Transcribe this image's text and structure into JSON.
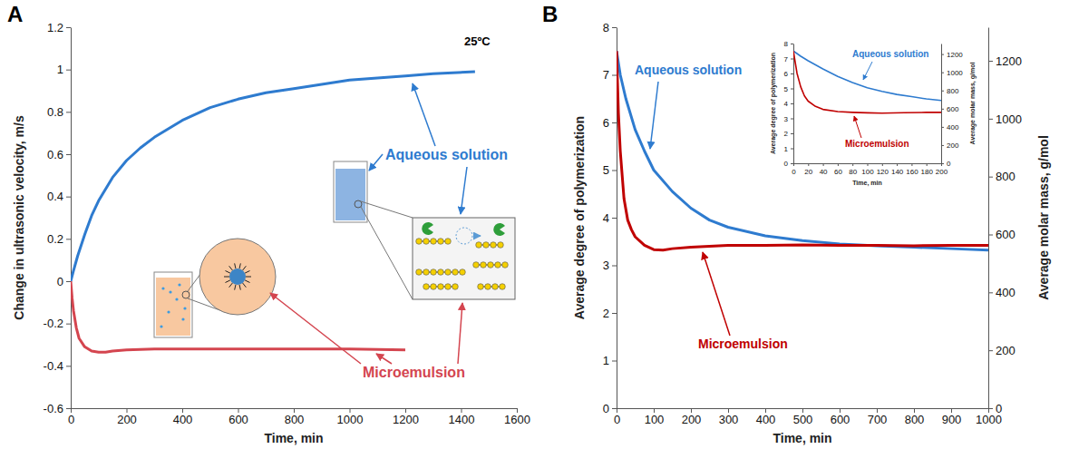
{
  "chart_data": [
    {
      "type": "line",
      "title": "A",
      "annotations": [
        "25ºC"
      ],
      "xlabel": "Time, min",
      "ylabel": "Change in ultrasonic velocity, m/s",
      "xlim": [
        0,
        1600
      ],
      "xticks": [
        0,
        200,
        400,
        600,
        800,
        1000,
        1200,
        1400,
        1600
      ],
      "ylim": [
        -0.6,
        1.2
      ],
      "yticks": [
        -0.6,
        -0.4,
        -0.2,
        0,
        0.2,
        0.4,
        0.6,
        0.8,
        1,
        1.2
      ],
      "series": [
        {
          "name": "Aqueous solution",
          "color": "#2e7bcf",
          "x": [
            0,
            10,
            25,
            50,
            75,
            100,
            150,
            200,
            250,
            300,
            400,
            500,
            600,
            700,
            800,
            900,
            1000,
            1100,
            1200,
            1300,
            1450
          ],
          "values": [
            0,
            0.05,
            0.12,
            0.22,
            0.31,
            0.38,
            0.49,
            0.57,
            0.63,
            0.68,
            0.76,
            0.82,
            0.86,
            0.89,
            0.91,
            0.93,
            0.95,
            0.96,
            0.97,
            0.98,
            0.99
          ]
        },
        {
          "name": "Microemulsion",
          "color": "#d4454f",
          "x": [
            0,
            5,
            10,
            20,
            30,
            50,
            75,
            100,
            125,
            150,
            200,
            300,
            400,
            600,
            800,
            1000,
            1200
          ],
          "values": [
            0,
            -0.08,
            -0.14,
            -0.22,
            -0.27,
            -0.31,
            -0.33,
            -0.335,
            -0.335,
            -0.33,
            -0.325,
            -0.32,
            -0.32,
            -0.32,
            -0.32,
            -0.32,
            -0.325
          ]
        }
      ]
    },
    {
      "type": "line",
      "title": "B",
      "xlabel": "Time, min",
      "ylabel": "Average degree of polymerization",
      "y2label": "Average molar mass, g/mol",
      "xlim": [
        0,
        1000
      ],
      "xticks": [
        0,
        100,
        200,
        300,
        400,
        500,
        600,
        700,
        800,
        900,
        1000
      ],
      "ylim": [
        0,
        8
      ],
      "yticks": [
        0,
        1,
        2,
        3,
        4,
        5,
        6,
        7,
        8
      ],
      "y2lim": [
        0,
        1316
      ],
      "y2ticks": [
        0,
        200,
        400,
        600,
        800,
        1000,
        1200
      ],
      "series": [
        {
          "name": "Aqueous solution",
          "color": "#2e7bcf",
          "x": [
            0,
            10,
            25,
            50,
            75,
            100,
            150,
            200,
            250,
            300,
            400,
            500,
            600,
            700,
            800,
            900,
            1000
          ],
          "values": [
            7.5,
            7.0,
            6.5,
            5.85,
            5.4,
            5.0,
            4.55,
            4.2,
            3.95,
            3.8,
            3.62,
            3.52,
            3.45,
            3.41,
            3.38,
            3.35,
            3.32
          ]
        },
        {
          "name": "Microemulsion",
          "color": "#c00000",
          "x": [
            0,
            5,
            10,
            20,
            30,
            40,
            50,
            75,
            100,
            125,
            150,
            200,
            300,
            400,
            500,
            600,
            700,
            800,
            900,
            1000
          ],
          "values": [
            7.5,
            6.2,
            5.4,
            4.4,
            3.95,
            3.75,
            3.6,
            3.42,
            3.33,
            3.32,
            3.35,
            3.38,
            3.42,
            3.42,
            3.43,
            3.42,
            3.42,
            3.41,
            3.42,
            3.42
          ]
        }
      ]
    },
    {
      "type": "line",
      "xlabel": "Time, min",
      "ylabel": "Average degree of polymerization",
      "y2label": "Average molar mass, g/mol",
      "xlim": [
        0,
        200
      ],
      "xticks": [
        0,
        20,
        40,
        60,
        80,
        100,
        120,
        140,
        160,
        180,
        200
      ],
      "ylim": [
        0,
        8
      ],
      "yticks": [
        0,
        1,
        2,
        3,
        4,
        5,
        6,
        7,
        8
      ],
      "y2lim": [
        0,
        1316
      ],
      "y2ticks": [
        0,
        200,
        400,
        600,
        800,
        1000,
        1200
      ],
      "series": [
        {
          "name": "Aqueous solution",
          "color": "#2e7bcf",
          "x": [
            0,
            10,
            20,
            40,
            60,
            80,
            100,
            120,
            140,
            160,
            180,
            200
          ],
          "values": [
            7.5,
            7.15,
            6.85,
            6.3,
            5.8,
            5.4,
            5.05,
            4.8,
            4.6,
            4.45,
            4.3,
            4.2
          ]
        },
        {
          "name": "Microemulsion",
          "color": "#c00000",
          "x": [
            0,
            5,
            10,
            15,
            20,
            30,
            40,
            60,
            80,
            100,
            120,
            150,
            180,
            200
          ],
          "values": [
            7.5,
            6.0,
            5.1,
            4.5,
            4.15,
            3.8,
            3.6,
            3.45,
            3.4,
            3.37,
            3.35,
            3.38,
            3.4,
            3.4
          ]
        }
      ]
    }
  ]
}
